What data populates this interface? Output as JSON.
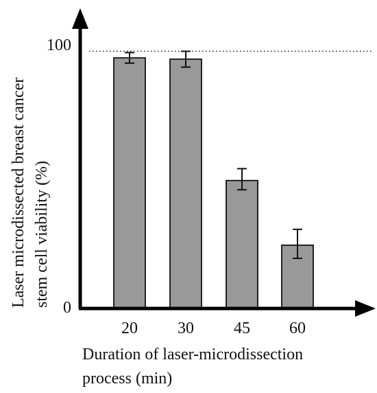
{
  "chart_data": {
    "type": "bar",
    "categories": [
      "20",
      "30",
      "45",
      "60"
    ],
    "values": [
      95,
      94.5,
      48.5,
      24
    ],
    "error": [
      [
        93,
        97
      ],
      [
        91.5,
        97.5
      ],
      [
        45,
        53
      ],
      [
        19,
        30
      ]
    ],
    "reference_line": 97.5,
    "ylim": [
      0,
      100
    ],
    "yticks": [
      0,
      100
    ],
    "ytick_labels": [
      "0",
      "100"
    ],
    "xlabel_lines": [
      "Duration of laser-microdissection",
      "process (min)"
    ],
    "ylabel_lines": [
      "Laser microdissected breast cancer",
      "stem cell viability  (%)"
    ],
    "grid": false,
    "bar_color": "#999999",
    "edge_color": "#111111"
  }
}
